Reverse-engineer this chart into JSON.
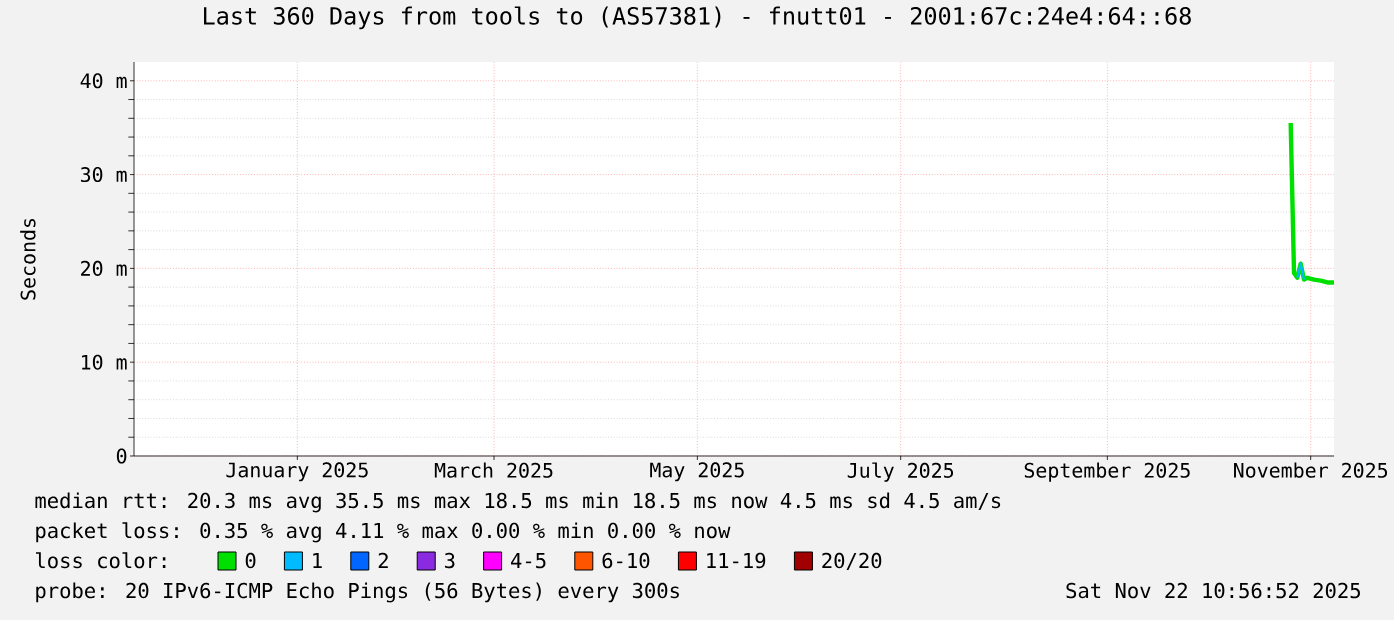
{
  "chart_data": {
    "type": "line",
    "title": "Last 360 Days from tools to (AS57381) - fnutt01 - 2001:67c:24e4:64::68",
    "ylabel": "Seconds",
    "x": [
      "2025-11-09",
      "2025-11-10",
      "2025-11-11",
      "2025-11-12",
      "2025-11-13",
      "2025-11-14",
      "2025-11-16",
      "2025-11-18",
      "2025-11-20",
      "2025-11-22"
    ],
    "series": [
      {
        "name": "0",
        "color": "#00e000",
        "values": [
          35.5,
          19.5,
          19.0,
          20.5,
          18.8,
          19.0,
          18.8,
          18.7,
          18.5,
          18.5
        ]
      },
      {
        "name": "1",
        "color": "#00bbff",
        "values": [
          null,
          null,
          19.0,
          20.5,
          18.8,
          null,
          null,
          null,
          null,
          null
        ]
      },
      {
        "name": "2",
        "color": "#0066ff",
        "values": [
          null,
          null,
          null,
          null,
          null,
          null,
          null,
          null,
          null,
          null
        ]
      },
      {
        "name": "3",
        "color": "#8a2be2",
        "values": [
          null,
          null,
          null,
          null,
          null,
          null,
          null,
          null,
          null,
          null
        ]
      },
      {
        "name": "4-5",
        "color": "#ff00ff",
        "values": [
          null,
          null,
          null,
          null,
          null,
          null,
          null,
          null,
          null,
          null
        ]
      },
      {
        "name": "6-10",
        "color": "#ff5500",
        "values": [
          null,
          null,
          null,
          null,
          null,
          null,
          null,
          null,
          null,
          null
        ]
      },
      {
        "name": "11-19",
        "color": "#ff0000",
        "values": [
          null,
          null,
          null,
          null,
          null,
          null,
          null,
          null,
          null,
          null
        ]
      },
      {
        "name": "20/20",
        "color": "#a10000",
        "values": [
          null,
          null,
          null,
          null,
          null,
          null,
          null,
          null,
          null,
          null
        ]
      }
    ],
    "legend": "bottom",
    "legend_title": "loss color:",
    "xlim": [
      "2024-11-27",
      "2025-11-22"
    ],
    "xticks": [
      {
        "value": "2025-01-15",
        "label": "January 2025"
      },
      {
        "value": "2025-03-15",
        "label": "March 2025"
      },
      {
        "value": "2025-05-15",
        "label": "May 2025"
      },
      {
        "value": "2025-07-15",
        "label": "July 2025"
      },
      {
        "value": "2025-09-15",
        "label": "September 2025"
      },
      {
        "value": "2025-11-15",
        "label": "November 2025"
      }
    ],
    "ylim": [
      0,
      42
    ],
    "yticks": [
      {
        "value": 0,
        "label": "0"
      },
      {
        "value": 10,
        "label": "10 m"
      },
      {
        "value": 20,
        "label": "20 m"
      },
      {
        "value": 30,
        "label": "30 m"
      },
      {
        "value": 40,
        "label": "40 m"
      }
    ],
    "grid": true,
    "marker": "none",
    "line_style": "solid",
    "annotations": [
      "median rtt:  20.3 ms avg  35.5 ms max  18.5 ms min  18.5 ms now  4.5 ms sd  4.5   am/s",
      "packet loss: 0.35 % avg  4.11 % max  0.00 % min  0.00 % now",
      "probe:       20 IPv6-ICMP Echo Pings (56 Bytes) every 300s",
      "Sat Nov 22 10:56:52 2025"
    ]
  }
}
